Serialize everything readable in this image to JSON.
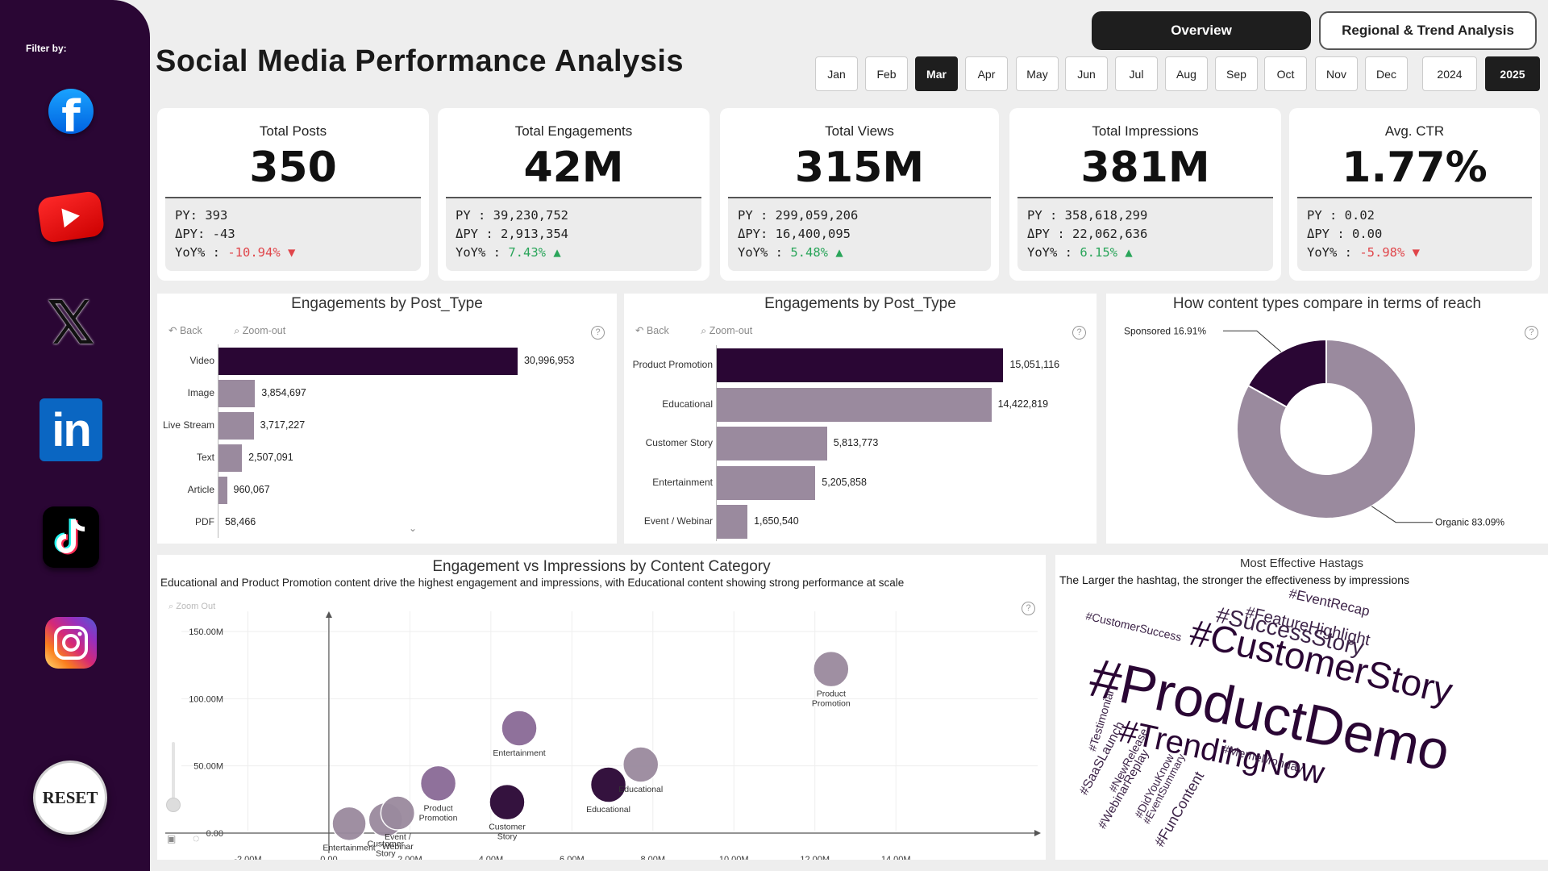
{
  "sidebar": {
    "filter_label": "Filter by:",
    "socials": [
      {
        "name": "Facebook",
        "icon": "facebook-icon"
      },
      {
        "name": "YouTube",
        "icon": "youtube-icon"
      },
      {
        "name": "X",
        "icon": "x-icon"
      },
      {
        "name": "LinkedIn",
        "icon": "linkedin-icon"
      },
      {
        "name": "TikTok",
        "icon": "tiktok-icon"
      },
      {
        "name": "Instagram",
        "icon": "instagram-icon"
      }
    ],
    "reset_label": "RESET",
    "bg_color": "#2a0634"
  },
  "header": {
    "title": "Social Media Performance Analysis",
    "nav": {
      "overview": "Overview",
      "regional": "Regional & Trend Analysis"
    },
    "months": [
      "Jan",
      "Feb",
      "Mar",
      "Apr",
      "May",
      "Jun",
      "Jul",
      "Aug",
      "Sep",
      "Oct",
      "Nov",
      "Dec"
    ],
    "selected_month": "Mar",
    "years": [
      "2024",
      "2025"
    ],
    "selected_year": "2025"
  },
  "kpis": [
    {
      "title": "Total Posts",
      "value": "350",
      "py_label": "PY: ",
      "py": "393",
      "dpy_label": "ΔPY: ",
      "dpy": "-43",
      "yoy_label": "YoY% : ",
      "yoy": "-10.94%",
      "trend": "down"
    },
    {
      "title": "Total Engagements",
      "value": "42M",
      "py_label": "PY : ",
      "py": "39,230,752",
      "dpy_label": "ΔPY : ",
      "dpy": "2,913,354",
      "yoy_label": "YoY% : ",
      "yoy": "7.43%",
      "trend": "up"
    },
    {
      "title": "Total Views",
      "value": "315M",
      "py_label": "PY : ",
      "py": "299,059,206",
      "dpy_label": "ΔPY: ",
      "dpy": "16,400,095",
      "yoy_label": "YoY% : ",
      "yoy": "5.48%",
      "trend": "up"
    },
    {
      "title": "Total Impressions",
      "value": "381M",
      "py_label": "PY : ",
      "py": "358,618,299",
      "dpy_label": "ΔPY : ",
      "dpy": "22,062,636",
      "yoy_label": "YoY% : ",
      "yoy": "6.15%",
      "trend": "up"
    },
    {
      "title": "Avg. CTR",
      "value": "1.77%",
      "py_label": "PY : ",
      "py": "0.02",
      "dpy_label": "ΔPY : ",
      "dpy": "0.00",
      "yoy_label": "YoY% : ",
      "yoy": "-5.98%",
      "trend": "down"
    }
  ],
  "toolbar": {
    "back": "Back",
    "zoom_out": "Zoom-out"
  },
  "colors": {
    "highlight": "#2a0634",
    "bar": "#9a8a9e",
    "positive": "#2aa55a",
    "negative": "#e0454a"
  },
  "chart_data": [
    {
      "type": "bar",
      "orientation": "horizontal",
      "title": "Engagements by Post_Type",
      "categories": [
        "Video",
        "Image",
        "Live Stream",
        "Text",
        "Article",
        "PDF"
      ],
      "values": [
        30996953,
        3854697,
        3717227,
        2507091,
        960067,
        58466
      ],
      "labels": [
        "30,996,953",
        "3,854,697",
        "3,717,227",
        "2,507,091",
        "960,067",
        "58,466"
      ],
      "xlim": [
        0,
        40000000
      ]
    },
    {
      "type": "bar",
      "orientation": "horizontal",
      "title": "Engagements by Post_Type",
      "categories": [
        "Product Promotion",
        "Educational",
        "Customer Story",
        "Entertainment",
        "Event / Webinar"
      ],
      "values": [
        15051116,
        14422819,
        5813773,
        5205858,
        1650540
      ],
      "labels": [
        "15,051,116",
        "14,422,819",
        "5,813,773",
        "5,205,858",
        "1,650,540"
      ],
      "xlim": [
        0,
        19000000
      ]
    },
    {
      "type": "pie",
      "donut": true,
      "title": "How content types compare in terms of reach",
      "slices": [
        {
          "name": "Organic",
          "value": 83.09,
          "label": "Organic 83.09%",
          "color": "#9a8a9e"
        },
        {
          "name": "Sponsored",
          "value": 16.91,
          "label": "Sponsored 16.91%",
          "color": "#2a0634"
        }
      ]
    },
    {
      "type": "scatter",
      "title": "Engagement vs Impressions by Content Category",
      "subtitle": "Educational and Product Promotion content drive the highest engagement and impressions, with Educational content showing strong performance at scale",
      "xlim": [
        -4000000,
        17500000
      ],
      "ylim": [
        -15000000,
        165000000
      ],
      "x_ticks": [
        -2000000,
        0,
        2000000,
        4000000,
        6000000,
        8000000,
        10000000,
        12000000,
        14000000
      ],
      "x_tick_labels": [
        "-2.00M",
        "0.00",
        "2.00M",
        "4.00M",
        "6.00M",
        "8.00M",
        "10.00M",
        "12.00M",
        "14.00M"
      ],
      "y_ticks": [
        0,
        50000000,
        100000000,
        150000000
      ],
      "y_tick_labels": [
        "0.00",
        "50.00M",
        "100.00M",
        "150.00M"
      ],
      "zoom_label": "Zoom Out",
      "points": [
        {
          "label": "Entertainment",
          "x": 500000,
          "y": 7000000,
          "r": 21,
          "color": "#9a8a9e"
        },
        {
          "label": "Customer Story",
          "x": 1400000,
          "y": 10000000,
          "r": 21,
          "color": "#9a8a9e"
        },
        {
          "label": "Event / Webinar",
          "x": 1700000,
          "y": 15000000,
          "r": 21,
          "color": "#9a8a9e"
        },
        {
          "label": "Product Promotion",
          "x": 2700000,
          "y": 37000000,
          "r": 22,
          "color": "#8a6a96"
        },
        {
          "label": "Customer Story",
          "x": 4400000,
          "y": 23000000,
          "r": 22,
          "color": "#2a0634"
        },
        {
          "label": "Entertainment",
          "x": 4700000,
          "y": 78000000,
          "r": 22,
          "color": "#8a6a96"
        },
        {
          "label": "Educational",
          "x": 6900000,
          "y": 36000000,
          "r": 22,
          "color": "#2a0634"
        },
        {
          "label": "Educational",
          "x": 7700000,
          "y": 51000000,
          "r": 22,
          "color": "#9a8a9e"
        },
        {
          "label": "Product Promotion",
          "x": 12400000,
          "y": 122000000,
          "r": 22,
          "color": "#9a8a9e"
        }
      ]
    }
  ],
  "wordcloud": {
    "title": "Most Effective Hastags",
    "subtitle": "The Larger the hashtag, the stronger the effectiveness by impressions",
    "words": [
      {
        "text": "#ProductDemo",
        "size": 68,
        "rotate": 12
      },
      {
        "text": "#CustomerStory",
        "size": 46,
        "rotate": 13
      },
      {
        "text": "#TrendingNow",
        "size": 40,
        "rotate": 12
      },
      {
        "text": "#SuccessStory",
        "size": 28,
        "rotate": 13
      },
      {
        "text": "#FeatureHighlight",
        "size": 20,
        "rotate": 13
      },
      {
        "text": "#EventRecap",
        "size": 17,
        "rotate": 13
      },
      {
        "text": "#CustomerSuccess",
        "size": 14,
        "rotate": 13
      },
      {
        "text": "#MemeMonday",
        "size": 15,
        "rotate": 14
      },
      {
        "text": "#Testimonial",
        "size": 14,
        "rotate": -73
      },
      {
        "text": "#SaaSLaunch",
        "size": 16,
        "rotate": -62
      },
      {
        "text": "#NewRelease",
        "size": 14,
        "rotate": -62
      },
      {
        "text": "#WebinarReplay",
        "size": 15,
        "rotate": -60
      },
      {
        "text": "#DidYouKnow",
        "size": 14,
        "rotate": -62
      },
      {
        "text": "#EventSummary",
        "size": 13,
        "rotate": -62
      },
      {
        "text": "#FunContent",
        "size": 18,
        "rotate": -60
      }
    ]
  }
}
